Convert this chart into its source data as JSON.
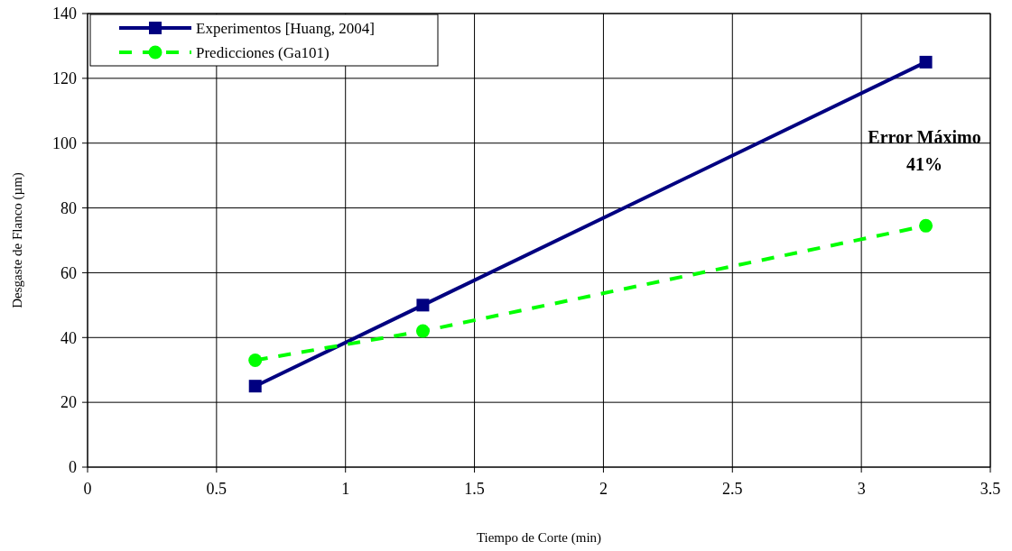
{
  "chart_data": {
    "type": "line",
    "xlabel": "Tiempo de Corte (min)",
    "ylabel": "Desgaste de Flanco (µm)",
    "x": [
      0.65,
      1.3,
      3.25
    ],
    "series": [
      {
        "name": "Experimentos [Huang, 2004]",
        "color": "#000080",
        "values": [
          25,
          50,
          125
        ],
        "marker": "square",
        "line_style": "solid"
      },
      {
        "name": "Predicciones (Ga101)",
        "color": "#00ff00",
        "values": [
          33,
          42,
          74.5
        ],
        "marker": "circle",
        "line_style": "dashed"
      }
    ],
    "xlim": [
      0,
      3.5
    ],
    "xticks": [
      0,
      0.5,
      1,
      1.5,
      2,
      2.5,
      3,
      3.5
    ],
    "ylim": [
      0,
      140
    ],
    "yticks": [
      0,
      20,
      40,
      60,
      80,
      100,
      120,
      140
    ],
    "grid": true,
    "legend": "top left",
    "annotations": [
      "Error Máximo\n41%"
    ]
  }
}
